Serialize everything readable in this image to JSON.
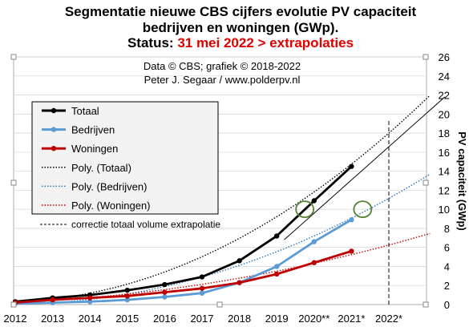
{
  "chart_data": {
    "type": "line",
    "title_lines": [
      "Segmentatie nieuwe CBS cijfers evolutie PV capaciteit",
      "bedrijven en woningen (GWp)."
    ],
    "status_label": "Status:",
    "status_value": "31 mei 2022 > extrapolaties",
    "credits": [
      "Data © CBS; grafiek © 2018-2022",
      "Peter J. Segaar / www.polderpv.nl"
    ],
    "ylabel": "PV capaciteit (GWp)",
    "ylim": [
      0,
      26
    ],
    "ytick_step": 2,
    "x_categories": [
      "2012",
      "2013",
      "2014",
      "2015",
      "2016",
      "2017",
      "2018",
      "2019",
      "2020**",
      "2021*",
      "2022*"
    ],
    "grid": true,
    "legend_position": "top-left",
    "series": [
      {
        "name": "Totaal",
        "color": "#000000",
        "x": [
          0,
          1,
          2,
          3,
          4,
          5,
          6,
          7,
          8,
          9
        ],
        "values": [
          0.3,
          0.7,
          1.0,
          1.5,
          2.1,
          2.9,
          4.6,
          7.2,
          10.9,
          14.5
        ]
      },
      {
        "name": "Bedrijven",
        "color": "#5b9bd5",
        "x": [
          0,
          1,
          2,
          3,
          4,
          5,
          6,
          7,
          8,
          9
        ],
        "values": [
          0.1,
          0.2,
          0.3,
          0.5,
          0.8,
          1.2,
          2.3,
          4.0,
          6.6,
          8.9
        ]
      },
      {
        "name": "Woningen",
        "color": "#c00000",
        "x": [
          0,
          1,
          2,
          3,
          4,
          5,
          6,
          7,
          8,
          9
        ],
        "values": [
          0.2,
          0.5,
          0.7,
          0.9,
          1.3,
          1.7,
          2.3,
          3.2,
          4.4,
          5.6
        ]
      }
    ],
    "trendlines": [
      {
        "name": "Poly. (Totaal)",
        "color": "#000000",
        "coeffs": [
          0.3,
          0.12,
          0.165
        ]
      },
      {
        "name": "Poly. (Bedrijven)",
        "color": "#2e75b6",
        "coeffs": [
          0.05,
          0.03,
          0.108
        ]
      },
      {
        "name": "Poly. (Woningen)",
        "color": "#c00000",
        "coeffs": [
          0.25,
          0.15,
          0.045
        ]
      }
    ],
    "correction": {
      "label": "correctie totaal volume extrapolatie",
      "from": [
        7.2,
        6.8
      ],
      "to": [
        11.5,
        21.8
      ]
    },
    "highlight_circles": [
      {
        "x": 7.75,
        "y": 10.0
      },
      {
        "x": 9.3,
        "y": 10.0
      }
    ],
    "vertical_marker_x": 10,
    "vertical_marker_top": 19.5
  }
}
